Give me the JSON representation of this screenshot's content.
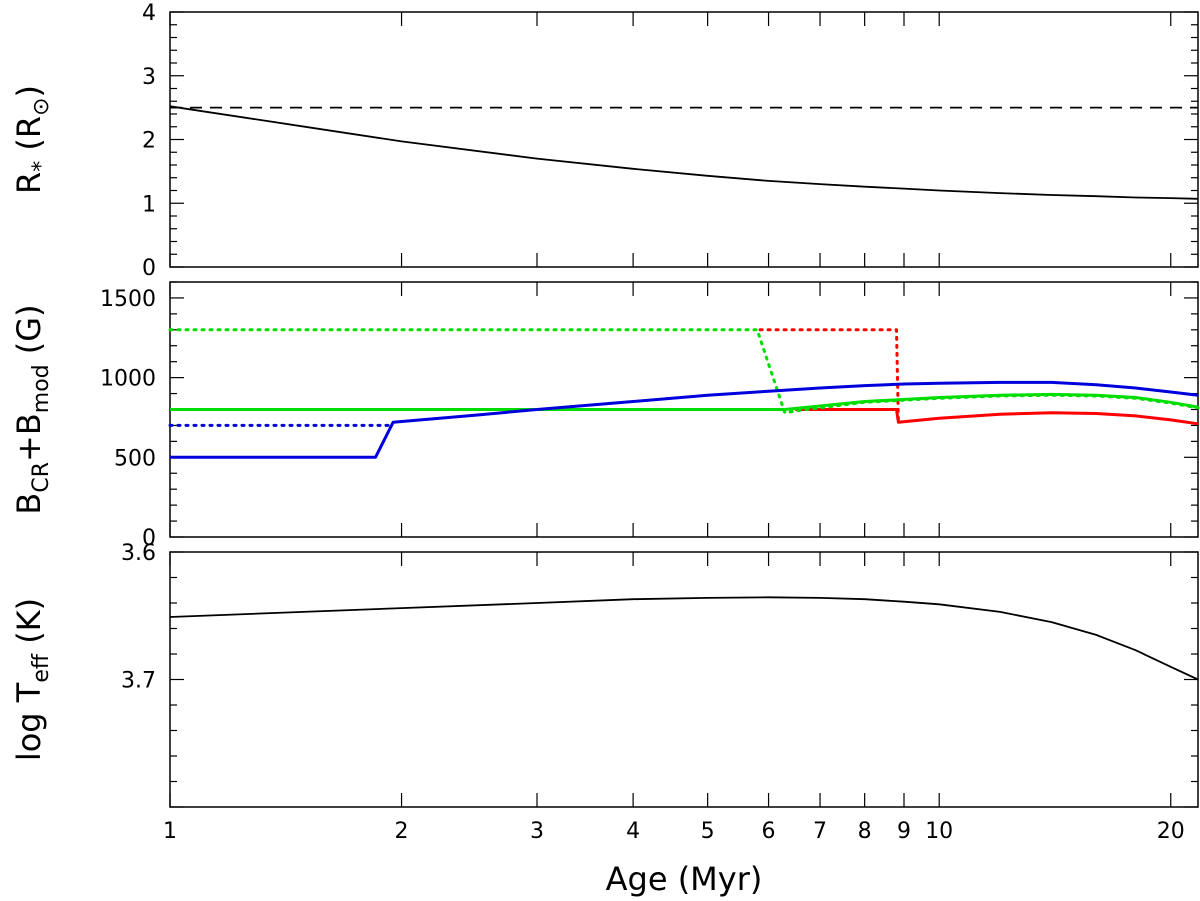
{
  "chart_data": [
    {
      "type": "line",
      "panel": "top",
      "ylabel_main": "R",
      "ylabel_sub": "*",
      "ylabel_unit": "(R",
      "ylabel_unit_sub": "⊙",
      "ylabel_close": ")",
      "ylim": [
        0,
        4
      ],
      "yticks": [
        0,
        1,
        2,
        3,
        4
      ],
      "ytick_labels": [
        "0",
        "1",
        "2",
        "3",
        "4"
      ],
      "series": [
        {
          "style": "dashed",
          "color": "#000000",
          "x": [
            1,
            21.7
          ],
          "y": [
            2.5,
            2.5
          ]
        },
        {
          "style": "solid",
          "color": "#000000",
          "x": [
            1,
            1.5,
            2,
            3,
            4,
            5,
            6,
            7,
            8,
            9,
            10,
            12,
            14,
            16,
            18,
            20,
            21.7
          ],
          "y": [
            2.52,
            2.2,
            1.97,
            1.7,
            1.54,
            1.43,
            1.35,
            1.3,
            1.26,
            1.23,
            1.2,
            1.16,
            1.13,
            1.11,
            1.09,
            1.08,
            1.07
          ]
        }
      ]
    },
    {
      "type": "line",
      "panel": "middle",
      "ylabel_b1": "B",
      "ylabel_sub1": "CR",
      "ylabel_plus": "+B",
      "ylabel_sub2": "mod",
      "ylabel_unit": "(G)",
      "ylim": [
        0,
        1600
      ],
      "yticks": [
        0,
        500,
        1000,
        1500
      ],
      "ytick_labels": [
        "0",
        "500",
        "1000",
        "1500"
      ],
      "series": [
        {
          "style": "dotted",
          "color": "#ff0000",
          "x": [
            5.85,
            8.8,
            8.85
          ],
          "y": [
            1300,
            1300,
            720
          ]
        },
        {
          "style": "solid",
          "color": "#ff0000",
          "x": [
            6.5,
            8.8,
            8.85,
            10,
            12,
            14,
            16,
            18,
            20,
            21.7
          ],
          "y": [
            800,
            800,
            720,
            745,
            770,
            780,
            775,
            760,
            735,
            710
          ]
        },
        {
          "style": "dotted",
          "color": "#00dd00",
          "x": [
            1,
            5.8,
            6.3,
            6.6,
            8,
            10,
            12,
            14,
            16,
            18,
            20,
            21.7
          ],
          "y": [
            1300,
            1300,
            780,
            795,
            845,
            870,
            885,
            890,
            885,
            870,
            840,
            810
          ]
        },
        {
          "style": "solid",
          "color": "#00dd00",
          "x": [
            1,
            6.3,
            8,
            10,
            12,
            14,
            16,
            18,
            20,
            21.7
          ],
          "y": [
            800,
            800,
            850,
            875,
            890,
            895,
            890,
            875,
            845,
            815
          ]
        },
        {
          "style": "dotted",
          "color": "#0000dd",
          "x": [
            1,
            1.95
          ],
          "y": [
            700,
            700
          ]
        },
        {
          "style": "solid",
          "color": "#0000dd",
          "x": [
            1,
            1.85,
            1.95,
            2.5,
            3,
            4,
            5,
            6,
            7,
            8,
            9,
            10,
            12,
            14,
            16,
            18,
            20,
            21.7
          ],
          "y": [
            500,
            500,
            720,
            765,
            800,
            850,
            890,
            915,
            935,
            950,
            960,
            965,
            970,
            970,
            955,
            935,
            910,
            890
          ]
        }
      ]
    },
    {
      "type": "line",
      "panel": "bottom",
      "ylabel_main": "log T",
      "ylabel_sub": "eff",
      "ylabel_unit": "(K)",
      "ylim": [
        3.6,
        3.8
      ],
      "y_reversed": true,
      "yticks": [
        3.6,
        3.7
      ],
      "ytick_labels": [
        "3.6",
        "3.7"
      ],
      "series": [
        {
          "style": "solid",
          "color": "#000000",
          "x": [
            1,
            2,
            3,
            4,
            5,
            6,
            7,
            8,
            9,
            10,
            12,
            14,
            16,
            18,
            20,
            21.7
          ],
          "y": [
            3.651,
            3.644,
            3.64,
            3.637,
            3.636,
            3.6355,
            3.636,
            3.637,
            3.639,
            3.641,
            3.647,
            3.655,
            3.665,
            3.677,
            3.69,
            3.7
          ]
        }
      ]
    }
  ],
  "xaxis": {
    "label": "Age (Myr)",
    "scale": "log",
    "xlim": [
      1,
      21.7
    ],
    "ticks": [
      1,
      2,
      3,
      4,
      5,
      6,
      7,
      8,
      9,
      10,
      20
    ],
    "tick_labels": [
      "1",
      "2",
      "3",
      "4",
      "5",
      "6",
      "7",
      "8",
      "9",
      "10",
      "20"
    ]
  }
}
